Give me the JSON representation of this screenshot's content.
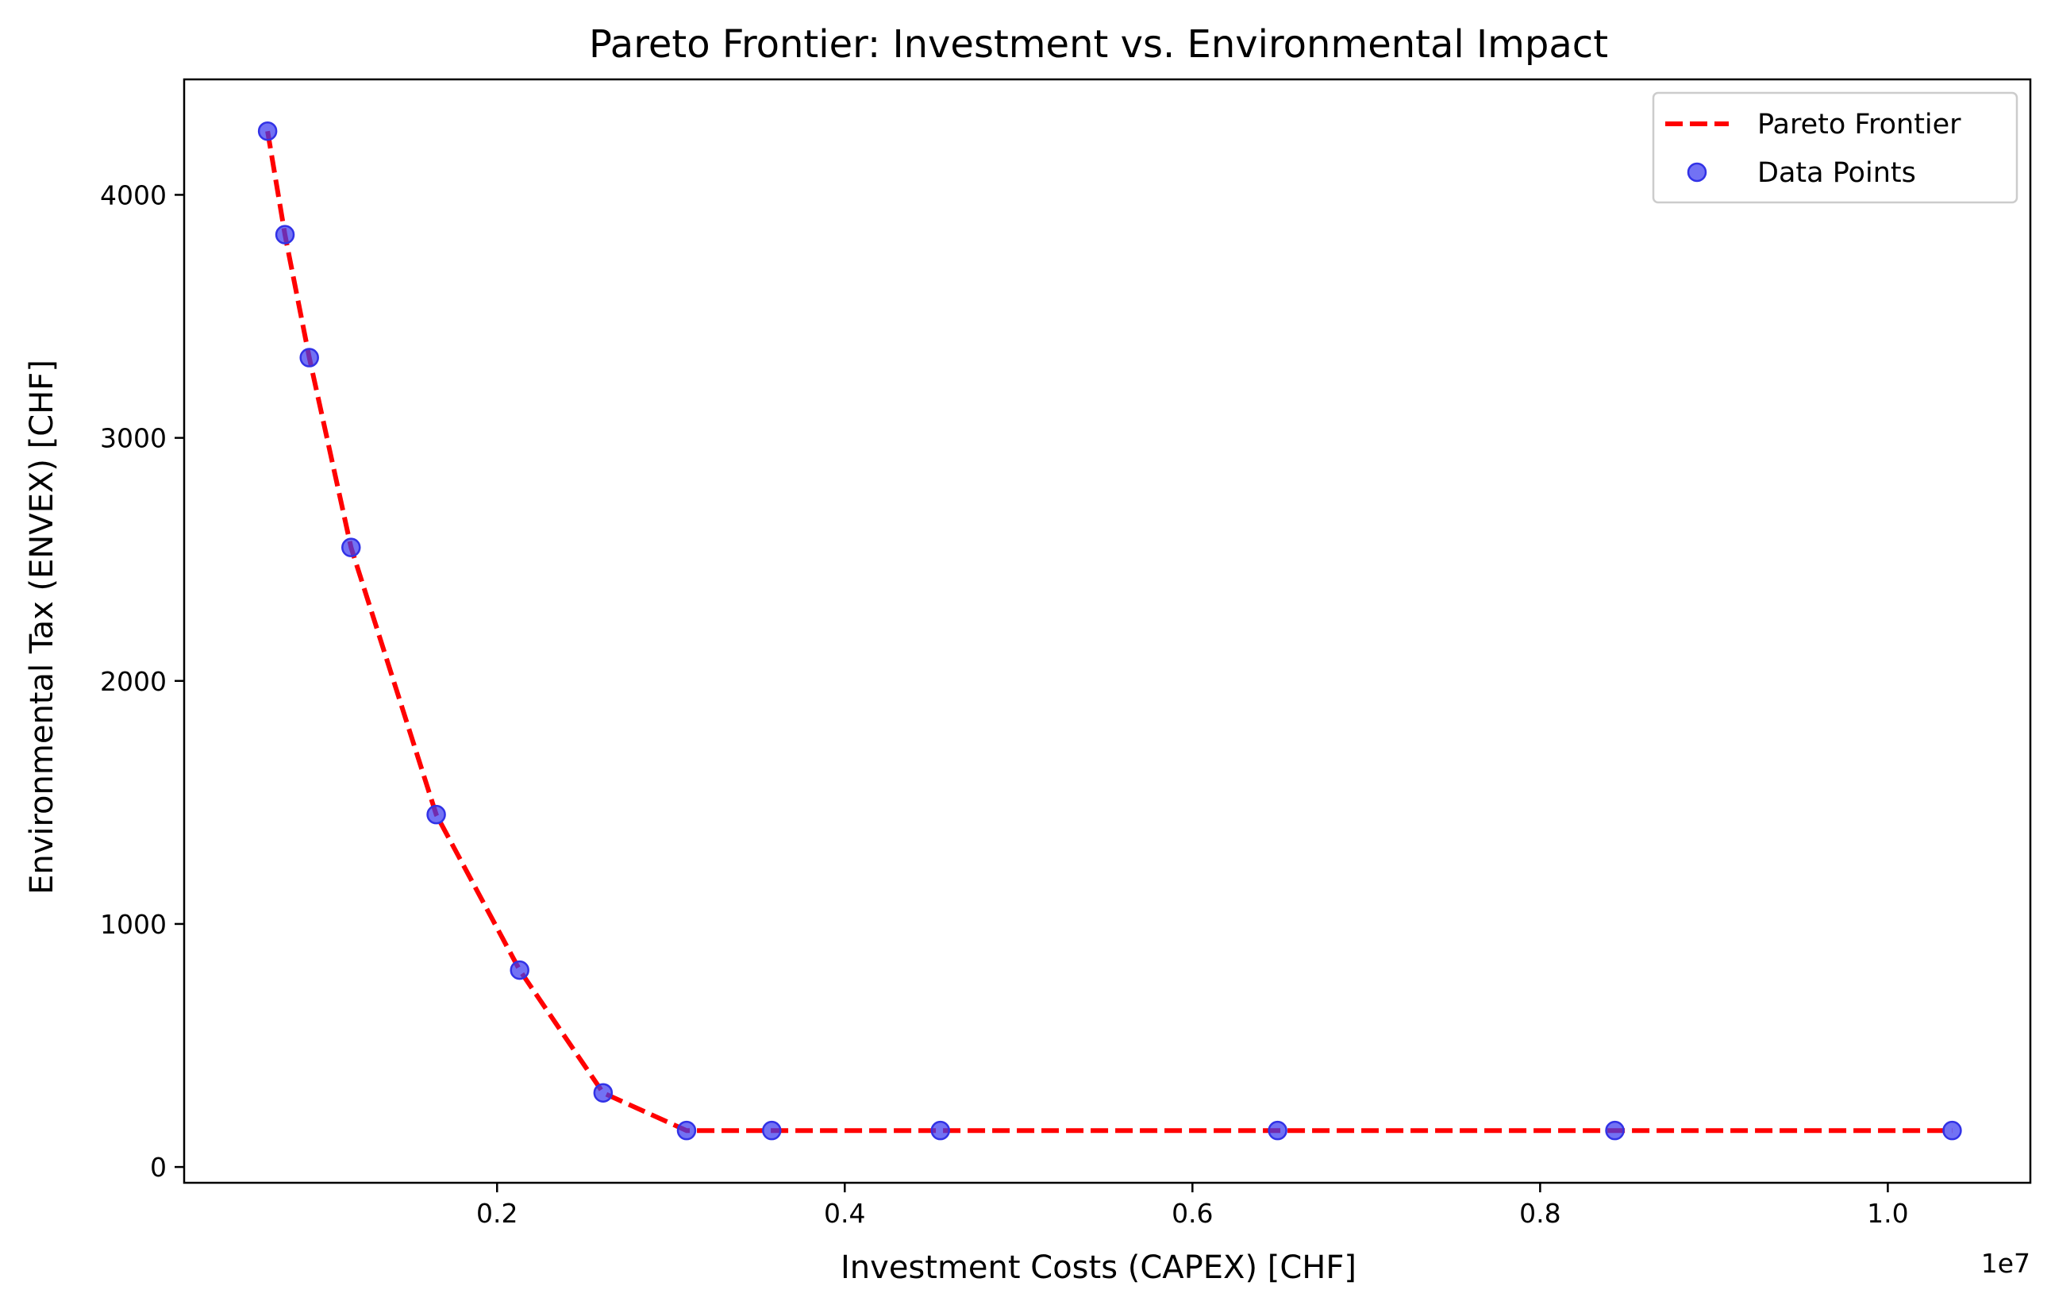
{
  "chart_data": {
    "type": "line",
    "title": "Pareto Frontier: Investment vs. Environmental Impact",
    "xlabel": "Investment Costs (CAPEX) [CHF]",
    "ylabel": "Environmental Tax (ENVEX) [CHF]",
    "x_offset_label": "1e7",
    "x_scale": 10000000,
    "xlim": [
      0.02,
      1.082
    ],
    "ylim": [
      -65,
      4475
    ],
    "x_ticks": [
      0.2,
      0.4,
      0.6,
      0.8,
      1.0
    ],
    "x_tick_labels": [
      "0.2",
      "0.4",
      "0.6",
      "0.8",
      "1.0"
    ],
    "y_ticks": [
      0,
      1000,
      2000,
      3000,
      4000
    ],
    "y_tick_labels": [
      "0",
      "1000",
      "2000",
      "3000",
      "4000"
    ],
    "grid": false,
    "legend_position": "top-right",
    "series": [
      {
        "name": "Pareto Frontier",
        "kind": "line",
        "style": "dashed",
        "color": "#ff0000",
        "x": [
          0.068,
          0.078,
          0.092,
          0.116,
          0.165,
          0.213,
          0.261,
          0.309,
          0.358,
          0.455,
          0.649,
          0.843,
          1.037
        ],
        "y": [
          4262,
          3836,
          3330,
          2549,
          1450,
          810,
          305,
          150,
          150,
          150,
          150,
          150,
          150
        ]
      },
      {
        "name": "Data Points",
        "kind": "scatter",
        "color": "#3b3bf0",
        "x": [
          0.068,
          0.078,
          0.092,
          0.116,
          0.165,
          0.213,
          0.261,
          0.309,
          0.358,
          0.455,
          0.649,
          0.843,
          1.037
        ],
        "y": [
          4262,
          3836,
          3330,
          2549,
          1450,
          810,
          305,
          150,
          150,
          150,
          150,
          150,
          150
        ]
      }
    ]
  }
}
